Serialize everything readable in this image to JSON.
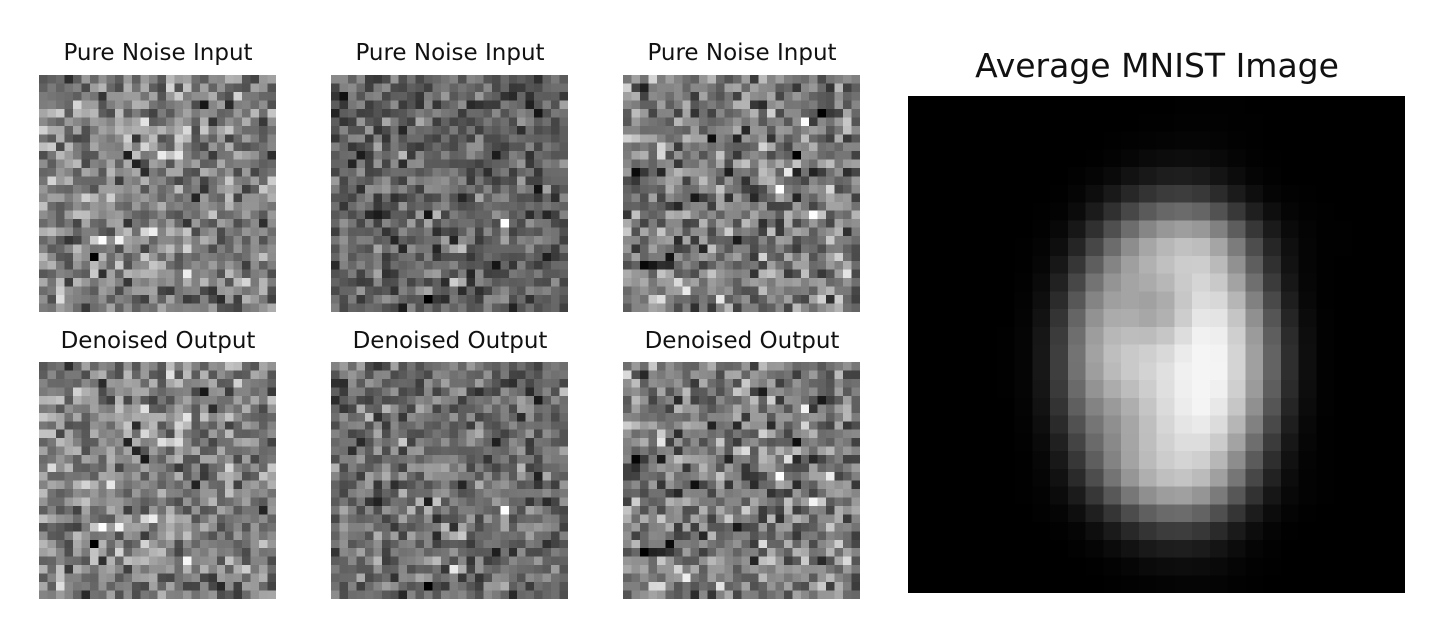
{
  "figure": {
    "noise_panels": [
      {
        "title": "Pure Noise Input"
      },
      {
        "title": "Pure Noise Input"
      },
      {
        "title": "Pure Noise Input"
      }
    ],
    "denoised_panels": [
      {
        "title": "Denoised Output"
      },
      {
        "title": "Denoised Output"
      },
      {
        "title": "Denoised Output"
      }
    ],
    "average_panel": {
      "title": "Average MNIST Image"
    },
    "grid_resolution": 28,
    "colormap": "grayscale"
  }
}
